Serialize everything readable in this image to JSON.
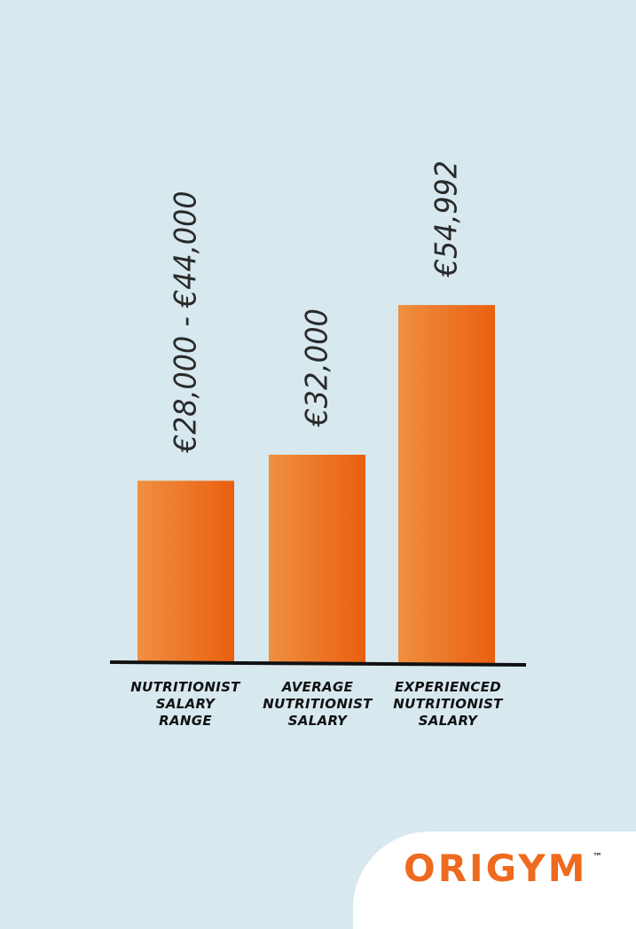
{
  "chart_data": {
    "type": "bar",
    "categories": [
      "NUTRITIONIST\nSALARY\nRANGE",
      "AVERAGE\nNUTRITIONIST\nSALARY",
      "EXPERIENCED\nNUTRITIONIST\nSALARY"
    ],
    "values": [
      28000,
      32000,
      54992
    ],
    "data_labels": [
      "€28,000 - €44,000",
      "€32,000",
      "€54,992"
    ],
    "ylim": [
      0,
      61000
    ],
    "grid": false,
    "bar_color_start": "#ef9040",
    "bar_color_end": "#ea5f10",
    "axis_color": "#111111"
  },
  "brand": {
    "logo_text": "ORIGYM",
    "trademark": "™",
    "logo_color": "#ee6a1f"
  }
}
